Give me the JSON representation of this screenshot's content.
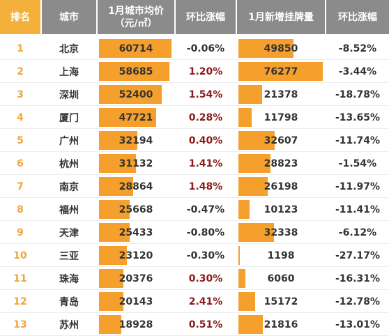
{
  "headers": {
    "rank": "排名",
    "city": "城市",
    "price_line1": "1月城市均价",
    "price_line2": "（元/㎡）",
    "price_change": "环比涨幅",
    "listings": "1月新增挂牌量",
    "listings_change": "环比涨幅"
  },
  "colors": {
    "bar": "#f5a02c",
    "rank_text": "#f0a63a",
    "header_bg": "#8b8b8b",
    "rank_header_bg": "#f3b13c",
    "positive_change": "#8b1a1a"
  },
  "rows": [
    {
      "rank": "1",
      "city": "北京",
      "price": "60714",
      "price_change": "-0.06%",
      "listings": "49850",
      "listings_change": "-8.52%"
    },
    {
      "rank": "2",
      "city": "上海",
      "price": "58685",
      "price_change": "1.20%",
      "listings": "76277",
      "listings_change": "-3.44%"
    },
    {
      "rank": "3",
      "city": "深圳",
      "price": "52400",
      "price_change": "1.54%",
      "listings": "21378",
      "listings_change": "-18.78%"
    },
    {
      "rank": "4",
      "city": "厦门",
      "price": "47721",
      "price_change": "0.28%",
      "listings": "11798",
      "listings_change": "-13.65%"
    },
    {
      "rank": "5",
      "city": "广州",
      "price": "32194",
      "price_change": "0.40%",
      "listings": "32607",
      "listings_change": "-11.74%"
    },
    {
      "rank": "6",
      "city": "杭州",
      "price": "31132",
      "price_change": "1.41%",
      "listings": "28823",
      "listings_change": "-1.54%"
    },
    {
      "rank": "7",
      "city": "南京",
      "price": "28864",
      "price_change": "1.48%",
      "listings": "26198",
      "listings_change": "-11.97%"
    },
    {
      "rank": "8",
      "city": "福州",
      "price": "25668",
      "price_change": "-0.47%",
      "listings": "10123",
      "listings_change": "-11.41%"
    },
    {
      "rank": "9",
      "city": "天津",
      "price": "25433",
      "price_change": "-0.80%",
      "listings": "32338",
      "listings_change": "-6.12%"
    },
    {
      "rank": "10",
      "city": "三亚",
      "price": "23120",
      "price_change": "-0.30%",
      "listings": "1198",
      "listings_change": "-27.17%"
    },
    {
      "rank": "11",
      "city": "珠海",
      "price": "20376",
      "price_change": "0.30%",
      "listings": "6060",
      "listings_change": "-16.31%"
    },
    {
      "rank": "12",
      "city": "青岛",
      "price": "20143",
      "price_change": "2.41%",
      "listings": "15172",
      "listings_change": "-12.78%"
    },
    {
      "rank": "13",
      "city": "苏州",
      "price": "18928",
      "price_change": "0.51%",
      "listings": "21816",
      "listings_change": "-13.01%"
    }
  ]
}
